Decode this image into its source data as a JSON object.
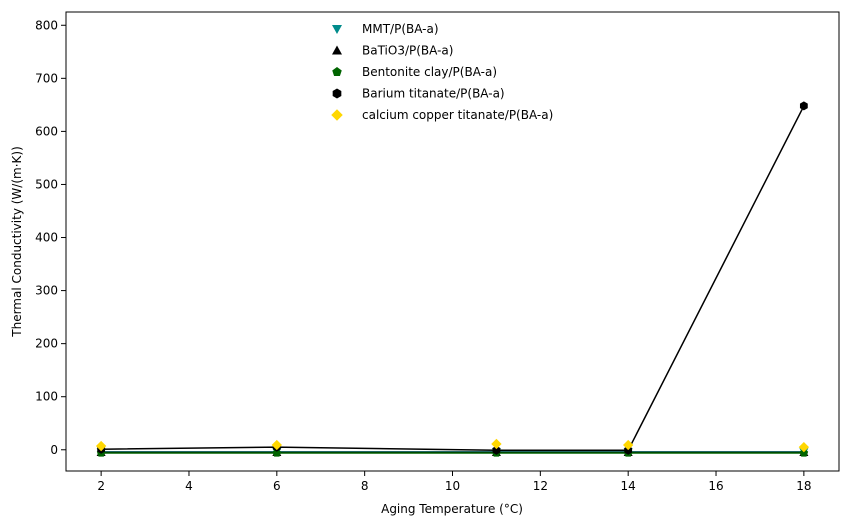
{
  "chart_data": {
    "type": "scatter",
    "xlabel": "Aging Temperature (°C)",
    "ylabel": "Thermal Conductivity (W/(m·K))",
    "x": [
      2,
      6,
      11,
      14,
      18
    ],
    "xlim": [
      1.2,
      18.8
    ],
    "ylim": [
      -40,
      825
    ],
    "xticks": [
      2,
      4,
      6,
      8,
      10,
      12,
      14,
      16,
      18
    ],
    "yticks": [
      0,
      100,
      200,
      300,
      400,
      500,
      600,
      700,
      800
    ],
    "legend": "upper-center",
    "grid": false,
    "series": [
      {
        "name": "MMT/P(BA-a)",
        "values": [
          -4,
          -4,
          -4,
          -4,
          -4
        ],
        "color": "#008b8b",
        "marker": "triangle-down",
        "line": true
      },
      {
        "name": "BaTiO3/P(BA-a)",
        "values": [
          -5,
          -5,
          -5,
          -5,
          -5
        ],
        "color": "#000000",
        "marker": "triangle-up",
        "line": true
      },
      {
        "name": "Bentonite clay/P(BA-a)",
        "values": [
          -6,
          -6,
          -6,
          -6,
          -6
        ],
        "color": "#006400",
        "marker": "pentagon",
        "line": true
      },
      {
        "name": "Barium titanate/P(BA-a)",
        "values": [
          1,
          5,
          -1,
          -1,
          648
        ],
        "color": "#000000",
        "marker": "hexagon",
        "line": true
      },
      {
        "name": "calcium copper titanate/P(BA-a)",
        "values": [
          7,
          9,
          11,
          9,
          5
        ],
        "color": "#ffd700",
        "marker": "diamond",
        "line": false
      }
    ]
  }
}
